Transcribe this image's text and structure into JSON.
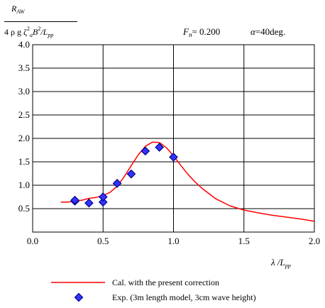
{
  "y_axis_label": {
    "numerator": "R",
    "numerator_sub": "AW",
    "den_a": "4 ρ g ζ",
    "den_sup1": "2",
    "den_sub1": "a",
    "den_b": "B",
    "den_sup2": "2",
    "den_c": "/L",
    "den_sub2": "pp"
  },
  "params": {
    "fn_symbol": "F",
    "fn_sub": "n",
    "fn_value": "= 0.200",
    "alpha_symbol": "α",
    "alpha_value": "=40deg."
  },
  "x_axis_label": {
    "lambda": "λ",
    "slash": " /L",
    "sub": "pp"
  },
  "legend": {
    "line_label": "Cal. with the present correction",
    "marker_label": "Exp. (3m length model, 3cm wave height)"
  },
  "colors": {
    "line": "#ff0000",
    "marker_fill": "#3333ff",
    "marker_edge": "#00008b",
    "grid": "#000000"
  },
  "chart_data": {
    "type": "line+scatter",
    "xlim": [
      0.0,
      2.0
    ],
    "ylim": [
      0.0,
      4.0
    ],
    "x_ticks": [
      "0.0",
      "0.5",
      "1.0",
      "1.5",
      "2.0"
    ],
    "y_ticks": [
      "0.5",
      "1.0",
      "1.5",
      "2.0",
      "2.5",
      "3.0",
      "3.5",
      "4.0"
    ],
    "grid": true,
    "series": [
      {
        "name": "Cal. with the present correction",
        "kind": "line",
        "x": [
          0.2,
          0.25,
          0.3,
          0.35,
          0.4,
          0.45,
          0.5,
          0.55,
          0.6,
          0.65,
          0.7,
          0.75,
          0.8,
          0.85,
          0.9,
          0.95,
          1.0,
          1.05,
          1.1,
          1.15,
          1.2,
          1.3,
          1.4,
          1.5,
          1.6,
          1.7,
          1.8,
          1.9,
          2.0
        ],
        "y": [
          0.64,
          0.64,
          0.66,
          0.68,
          0.72,
          0.74,
          0.78,
          0.85,
          0.98,
          1.18,
          1.42,
          1.65,
          1.83,
          1.92,
          1.91,
          1.8,
          1.63,
          1.43,
          1.24,
          1.08,
          0.94,
          0.71,
          0.56,
          0.47,
          0.41,
          0.36,
          0.32,
          0.28,
          0.23
        ]
      },
      {
        "name": "Exp. (3m length model, 3cm wave height)",
        "kind": "scatter",
        "x": [
          0.3,
          0.3,
          0.4,
          0.5,
          0.5,
          0.6,
          0.7,
          0.8,
          0.9,
          1.0
        ],
        "y": [
          0.66,
          0.68,
          0.62,
          0.64,
          0.75,
          1.04,
          1.24,
          1.73,
          1.81,
          1.6
        ]
      }
    ]
  }
}
